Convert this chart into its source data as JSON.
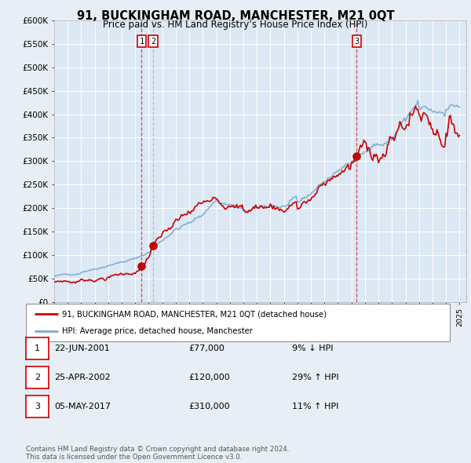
{
  "title": "91, BUCKINGHAM ROAD, MANCHESTER, M21 0QT",
  "subtitle": "Price paid vs. HM Land Registry’s House Price Index (HPI)",
  "background_color": "#e8eef5",
  "plot_bg_color": "#dce8f4",
  "ylabel_ticks": [
    "£0",
    "£50K",
    "£100K",
    "£150K",
    "£200K",
    "£250K",
    "£300K",
    "£350K",
    "£400K",
    "£450K",
    "£500K",
    "£550K",
    "£600K"
  ],
  "ytick_values": [
    0,
    50000,
    100000,
    150000,
    200000,
    250000,
    300000,
    350000,
    400000,
    450000,
    500000,
    550000,
    600000
  ],
  "legend_line1": "91, BUCKINGHAM ROAD, MANCHESTER, M21 0QT (detached house)",
  "legend_line2": "HPI: Average price, detached house, Manchester",
  "sale1_date": "22-JUN-2001",
  "sale1_price": "£77,000",
  "sale1_hpi": "9% ↓ HPI",
  "sale2_date": "25-APR-2002",
  "sale2_price": "£120,000",
  "sale2_hpi": "29% ↑ HPI",
  "sale3_date": "05-MAY-2017",
  "sale3_price": "£310,000",
  "sale3_hpi": "11% ↑ HPI",
  "footnote1": "Contains HM Land Registry data © Crown copyright and database right 2024.",
  "footnote2": "This data is licensed under the Open Government Licence v3.0.",
  "red_line_color": "#cc0000",
  "blue_line_color": "#7aaad0",
  "vline_color": "#cc0000",
  "vline2_color": "#aabbcc",
  "sale1_x": 2001.47,
  "sale2_x": 2002.32,
  "sale3_x": 2017.38,
  "xmin": 1995.0,
  "xmax": 2025.5,
  "ymin": 0,
  "ymax": 600000
}
